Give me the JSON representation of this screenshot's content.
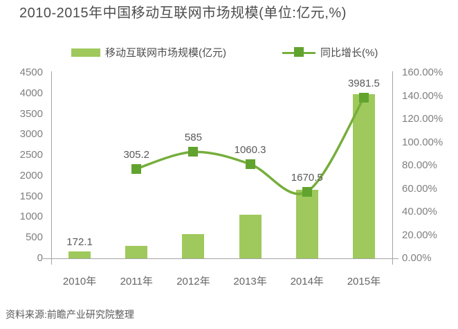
{
  "title": "2010-2015年中国移动互联网市场规模(单位:亿元,%)",
  "source_note": "资料来源:前瞻产业研究院整理",
  "colors": {
    "bar": "#9fc95c",
    "line": "#76ae3c",
    "marker": "#61a32e",
    "axis_line": "#a3a3a3",
    "tick_text": "#7f7f7f",
    "title_text": "#4d4d4d",
    "value_label_text": "#595959"
  },
  "legend": [
    {
      "label": "移动互联网市场规模(亿元)",
      "type": "bar"
    },
    {
      "label": "同比增长(%)",
      "type": "line"
    }
  ],
  "chart_data": {
    "type": "bar+line",
    "title": "2010-2015年中国移动互联网市场规模(单位:亿元,%)",
    "categories": [
      "2010年",
      "2011年",
      "2012年",
      "2013年",
      "2014年",
      "2015年"
    ],
    "series": [
      {
        "name": "移动互联网市场规模(亿元)",
        "type": "bar",
        "axis": "left",
        "values": [
          172.1,
          305.2,
          585,
          1060.3,
          1670.5,
          3981.5
        ],
        "data_labels": [
          "172.1",
          "305.2",
          "585",
          "1060.3",
          "1670.5",
          "3981.5"
        ]
      },
      {
        "name": "同比增长(%)",
        "type": "line",
        "axis": "right",
        "values": [
          null,
          77.3,
          91.7,
          81.2,
          57.5,
          138.3
        ]
      }
    ],
    "left_axis": {
      "min": 0,
      "max": 4500,
      "step": 500,
      "ticks": [
        "4500",
        "4000",
        "3500",
        "3000",
        "2500",
        "2000",
        "1500",
        "1000",
        "500",
        "0"
      ]
    },
    "right_axis": {
      "min": 0,
      "max": 160,
      "step": 20,
      "ticks": [
        "160.00%",
        "140.00%",
        "120.00%",
        "100.00%",
        "80.00%",
        "60.00%",
        "40.00%",
        "20.00%",
        "0.00%"
      ]
    },
    "grid": false,
    "legend_position": "top"
  }
}
